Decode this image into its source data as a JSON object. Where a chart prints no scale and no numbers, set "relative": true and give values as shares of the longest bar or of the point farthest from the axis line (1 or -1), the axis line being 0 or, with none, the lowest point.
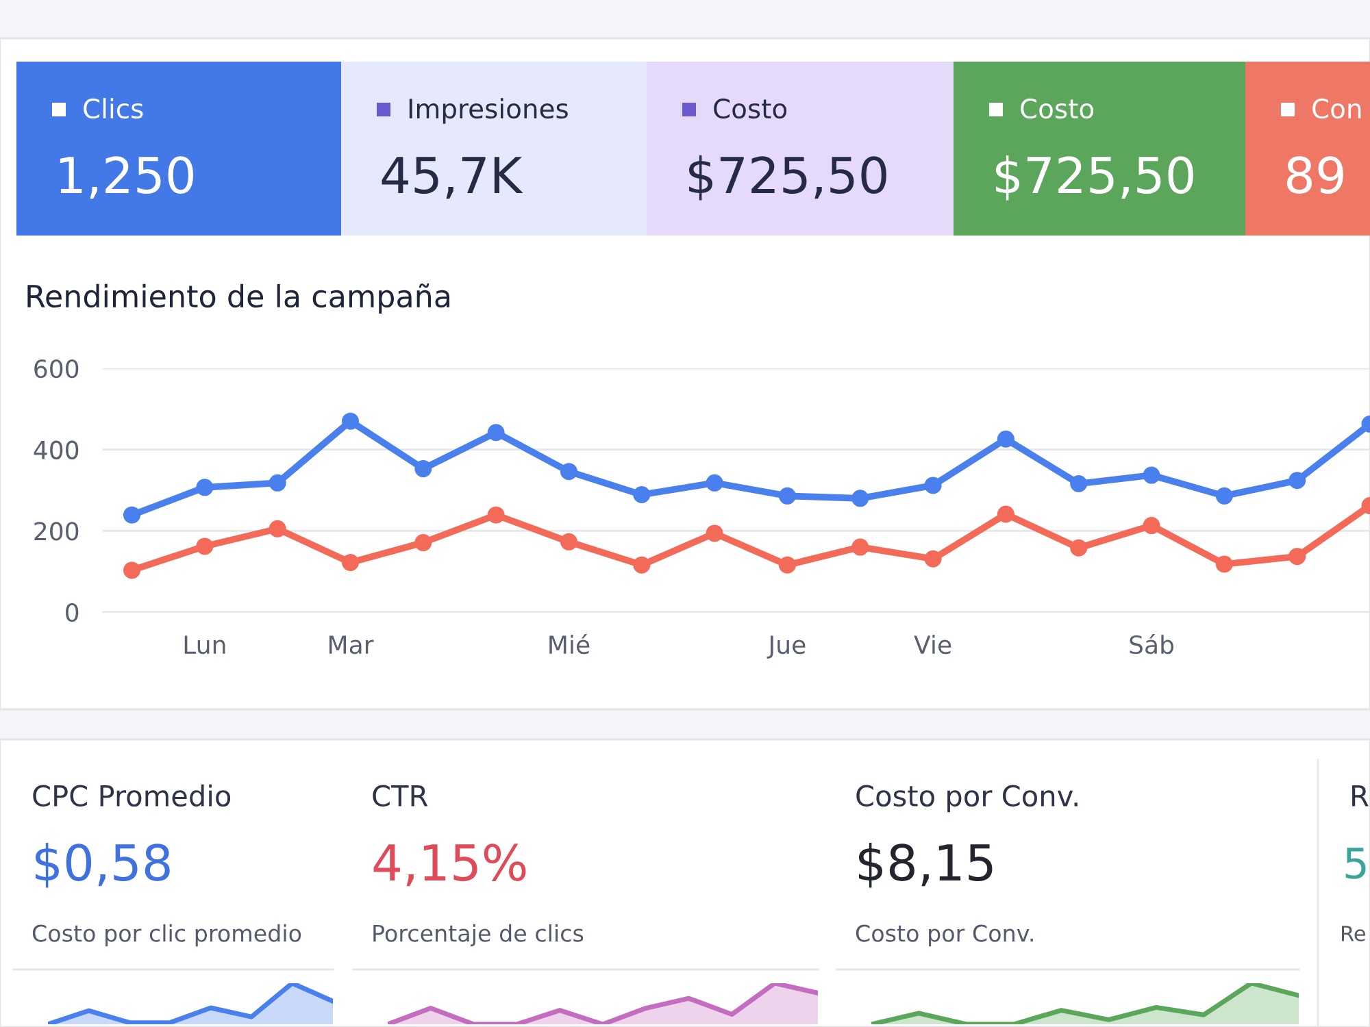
{
  "chart_data": [
    {
      "type": "other",
      "annotations": [
        "Clics",
        "1,250",
        "Impresiones",
        "45,7K",
        "Costo",
        "$725,50",
        "Costo",
        "$725,50",
        "Con",
        "89"
      ],
      "colors": [
        "#4379e6",
        "#e5e9fb",
        "#e6dafa",
        "#5ba65b",
        "#ef7766"
      ]
    },
    {
      "type": "line",
      "title": "Rendimiento de la campaña",
      "categories": [
        null,
        "Lun",
        null,
        "Mar",
        null,
        null,
        "Mié",
        null,
        null,
        "Jue",
        null,
        "Vie",
        null,
        null,
        "Sáb",
        null,
        null,
        null
      ],
      "ylim": [
        0,
        600
      ],
      "yticks": [
        0,
        200,
        400,
        600
      ],
      "grid": "y",
      "marker": "circle",
      "line_style": "solid",
      "series": [
        {
          "color": "#4a80ee",
          "values": [
            239,
            307,
            318,
            470,
            353,
            442,
            346,
            289,
            318,
            286,
            280,
            312,
            426,
            316,
            337,
            286,
            324,
            463
          ]
        },
        {
          "color": "#f46a58",
          "values": [
            103,
            162,
            205,
            122,
            171,
            239,
            173,
            116,
            194,
            116,
            160,
            131,
            241,
            158,
            213,
            118,
            137,
            262
          ]
        }
      ]
    },
    {
      "type": "area",
      "relative": true,
      "title": "CPC Promedio",
      "subtitle": "$0,58",
      "annotations": [
        "Costo por clic promedio"
      ],
      "categories": [
        null,
        null,
        null,
        null,
        null,
        null,
        null,
        null
      ],
      "series": [
        {
          "color": "#4a80ee",
          "values": [
            0,
            0.33,
            0.04,
            0.04,
            0.4,
            0.18,
            1,
            0.56
          ]
        }
      ]
    },
    {
      "type": "area",
      "relative": true,
      "title": "CTR",
      "subtitle": "4,15%",
      "annotations": [
        "Porcentaje de clics"
      ],
      "categories": [
        null,
        null,
        null,
        null,
        null,
        null,
        null,
        null,
        null,
        null,
        null
      ],
      "series": [
        {
          "color": "#c46cc0",
          "values": [
            0,
            0.39,
            0,
            0,
            0.34,
            0,
            0.39,
            0.63,
            0.24,
            1,
            0.76
          ]
        }
      ]
    },
    {
      "type": "area",
      "relative": true,
      "title": "Costo por Conv.",
      "subtitle": "$8,15",
      "annotations": [
        "Costo por Conv."
      ],
      "categories": [
        null,
        null,
        null,
        null,
        null,
        null,
        null,
        null,
        null,
        null
      ],
      "series": [
        {
          "color": "#5aa65a",
          "values": [
            0,
            0.27,
            0,
            0,
            0.34,
            0.11,
            0.41,
            0.23,
            1,
            0.7
          ]
        }
      ]
    },
    {
      "type": "other",
      "title": "R",
      "subtitle": "5",
      "annotations": [
        "Re"
      ]
    }
  ]
}
